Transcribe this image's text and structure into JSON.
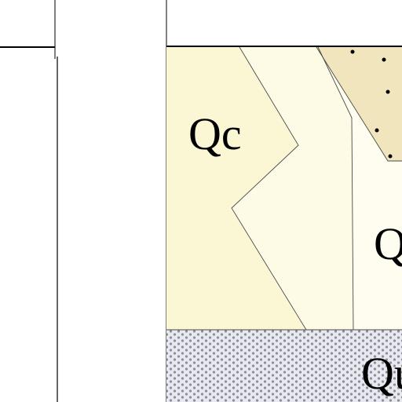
{
  "units": {
    "upper_left": {
      "label": "Qc",
      "color": "#fbf6d4"
    },
    "upper_middle": {
      "label": "",
      "color": "#fdfbe6"
    },
    "upper_right": {
      "label": "Q",
      "color": "#fefdf0"
    },
    "dotted_wedge": {
      "label": "",
      "color": "#f1e5bd"
    },
    "stippled_band": {
      "label": "Qu",
      "color": "#e8e8ef",
      "dot_color": "#8c8c9c"
    }
  },
  "colors": {
    "line": "#000000",
    "background": "#ffffff"
  }
}
